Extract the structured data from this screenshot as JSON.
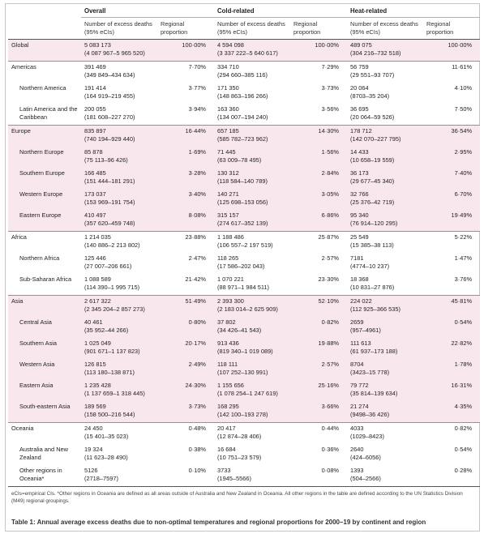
{
  "groups": [
    "Overall",
    "Cold-related",
    "Heat-related"
  ],
  "col_excess": "Number of excess deaths (95% eCIs)",
  "col_prop": "Regional proportion",
  "rows": [
    {
      "name": "Global",
      "sub": false,
      "shade": true,
      "group_start": true,
      "v": [
        [
          "5 083 173",
          "(4 087 967–5 965 520)",
          "100·00%"
        ],
        [
          "4 594 098",
          "(3 337 222–5 640 617)",
          "100·00%"
        ],
        [
          "489 075",
          "(304 216–732 518)",
          "100·00%"
        ]
      ]
    },
    {
      "name": "Americas",
      "sub": false,
      "shade": false,
      "group_start": true,
      "v": [
        [
          "391 469",
          "(349 849–434 634)",
          "7·70%"
        ],
        [
          "334 710",
          "(294 660–385 116)",
          "7·29%"
        ],
        [
          "56 759",
          "(29 551–93 707)",
          "11·61%"
        ]
      ]
    },
    {
      "name": "Northern America",
      "sub": true,
      "shade": false,
      "v": [
        [
          "191 414",
          "(164 919–219 455)",
          "3·77%"
        ],
        [
          "171 350",
          "(148 863–196 266)",
          "3·73%"
        ],
        [
          "20 064",
          "(8703–35 204)",
          "4·10%"
        ]
      ]
    },
    {
      "name": "Latin America and the Caribbean",
      "sub": true,
      "shade": false,
      "v": [
        [
          "200 055",
          "(181 608–227 270)",
          "3·94%"
        ],
        [
          "163 360",
          "(134 007–194 240)",
          "3·56%"
        ],
        [
          "36 695",
          "(20 064–59 526)",
          "7·50%"
        ]
      ]
    },
    {
      "name": "Europe",
      "sub": false,
      "shade": true,
      "group_start": true,
      "v": [
        [
          "835 897",
          "(740 194–929 440)",
          "16·44%"
        ],
        [
          "657 185",
          "(585 782–723 962)",
          "14·30%"
        ],
        [
          "178 712",
          "(142 070–227 795)",
          "36·54%"
        ]
      ]
    },
    {
      "name": "Northern Europe",
      "sub": true,
      "shade": true,
      "v": [
        [
          "85 878",
          "(75 113–96 426)",
          "1·69%"
        ],
        [
          "71 445",
          "(63 009–78 495)",
          "1·56%"
        ],
        [
          "14 433",
          "(10 658–19 559)",
          "2·95%"
        ]
      ]
    },
    {
      "name": "Southern Europe",
      "sub": true,
      "shade": true,
      "v": [
        [
          "166 485",
          "(151 444–181 291)",
          "3·28%"
        ],
        [
          "130 312",
          "(118 584–140 789)",
          "2·84%"
        ],
        [
          "36 173",
          "(29 677–45 340)",
          "7·40%"
        ]
      ]
    },
    {
      "name": "Western Europe",
      "sub": true,
      "shade": true,
      "v": [
        [
          "173 037",
          "(153 969–191 754)",
          "3·40%"
        ],
        [
          "140 271",
          "(125 698–153 056)",
          "3·05%"
        ],
        [
          "32 766",
          "(25 376–42 719)",
          "6·70%"
        ]
      ]
    },
    {
      "name": "Eastern Europe",
      "sub": true,
      "shade": true,
      "v": [
        [
          "410 497",
          "(357 620–459 748)",
          "8·08%"
        ],
        [
          "315 157",
          "(274 617–352 139)",
          "6·86%"
        ],
        [
          "95 340",
          "(76 914–120 295)",
          "19·49%"
        ]
      ]
    },
    {
      "name": "Africa",
      "sub": false,
      "shade": false,
      "group_start": true,
      "v": [
        [
          "1 214 035",
          "(140 886–2 213 802)",
          "23·88%"
        ],
        [
          "1 188 486",
          "(106 557–2 197 519)",
          "25·87%"
        ],
        [
          "25 549",
          "(15 385–38 113)",
          "5·22%"
        ]
      ]
    },
    {
      "name": "Northern Africa",
      "sub": true,
      "shade": false,
      "v": [
        [
          "125 446",
          "(27 007–206 661)",
          "2·47%"
        ],
        [
          "118 265",
          "(17 586–202 043)",
          "2·57%"
        ],
        [
          "7181",
          "(4774–10 237)",
          "1·47%"
        ]
      ]
    },
    {
      "name": "Sub-Saharan Africa",
      "sub": true,
      "shade": false,
      "v": [
        [
          "1 088 589",
          "(114 390–1 995 715)",
          "21·42%"
        ],
        [
          "1 070 221",
          "(88 971–1 984 511)",
          "23·30%"
        ],
        [
          "18 368",
          "(10 831–27 876)",
          "3·76%"
        ]
      ]
    },
    {
      "name": "Asia",
      "sub": false,
      "shade": true,
      "group_start": true,
      "v": [
        [
          "2 617 322",
          "(2 345 204–2 857 273)",
          "51·49%"
        ],
        [
          "2 393 300",
          "(2 183 014–2 625 909)",
          "52·10%"
        ],
        [
          "224 022",
          "(112 925–366 535)",
          "45·81%"
        ]
      ]
    },
    {
      "name": "Central Asia",
      "sub": true,
      "shade": true,
      "v": [
        [
          "40 461",
          "(35 952–44 266)",
          "0·80%"
        ],
        [
          "37 802",
          "(34 426–41 543)",
          "0·82%"
        ],
        [
          "2659",
          "(957–4961)",
          "0·54%"
        ]
      ]
    },
    {
      "name": "Southern Asia",
      "sub": true,
      "shade": true,
      "v": [
        [
          "1 025 049",
          "(901 671–1 137 823)",
          "20·17%"
        ],
        [
          "913 436",
          "(819 340–1 019 089)",
          "19·88%"
        ],
        [
          "111 613",
          "(61 937–173 188)",
          "22·82%"
        ]
      ]
    },
    {
      "name": "Western Asia",
      "sub": true,
      "shade": true,
      "v": [
        [
          "126 815",
          "(113 180–138 871)",
          "2·49%"
        ],
        [
          "118 111",
          "(107 252–130 991)",
          "2·57%"
        ],
        [
          "8704",
          "(3423–15 778)",
          "1·78%"
        ]
      ]
    },
    {
      "name": "Eastern Asia",
      "sub": true,
      "shade": true,
      "v": [
        [
          "1 235 428",
          "(1 137 659–1 318 445)",
          "24·30%"
        ],
        [
          "1 155 656",
          "(1 078 254–1 247 619)",
          "25·16%"
        ],
        [
          "79 772",
          "(35 814–139 634)",
          "16·31%"
        ]
      ]
    },
    {
      "name": "South-eastern Asia",
      "sub": true,
      "shade": true,
      "v": [
        [
          "189 569",
          "(158 500–216 544)",
          "3·73%"
        ],
        [
          "168 295",
          "(142 100–193 278)",
          "3·66%"
        ],
        [
          "21 274",
          "(9498–36 426)",
          "4·35%"
        ]
      ]
    },
    {
      "name": "Oceania",
      "sub": false,
      "shade": false,
      "group_start": true,
      "v": [
        [
          "24 450",
          "(15 401–35 023)",
          "0·48%"
        ],
        [
          "20 417",
          "(12 874–28 406)",
          "0·44%"
        ],
        [
          "4033",
          "(1029–8423)",
          "0·82%"
        ]
      ]
    },
    {
      "name": "Australia and New Zealand",
      "sub": true,
      "shade": false,
      "v": [
        [
          "19 324",
          "(11 623–28 490)",
          "0·38%"
        ],
        [
          "16 684",
          "(10 751–23 579)",
          "0·36%"
        ],
        [
          "2640",
          "(424–6056)",
          "0·54%"
        ]
      ]
    },
    {
      "name": "Other regions in Oceania*",
      "sub": true,
      "shade": false,
      "v": [
        [
          "5126",
          "(2718–7597)",
          "0·10%"
        ],
        [
          "3733",
          "(1945–5566)",
          "0·08%"
        ],
        [
          "1393",
          "(504–2566)",
          "0·28%"
        ]
      ]
    }
  ],
  "footnote": "eCIs=empirical CIs. *Other regions in Oceania are defined as all areas outside of Australia and New Zealand in Oceania. All other regions in the table are defined according to the UN Statistics Division (M49) regional groupings.",
  "caption": "Table 1: Annual average excess deaths due to non-optimal temperatures and regional proportions for 2000–19 by continent and region"
}
